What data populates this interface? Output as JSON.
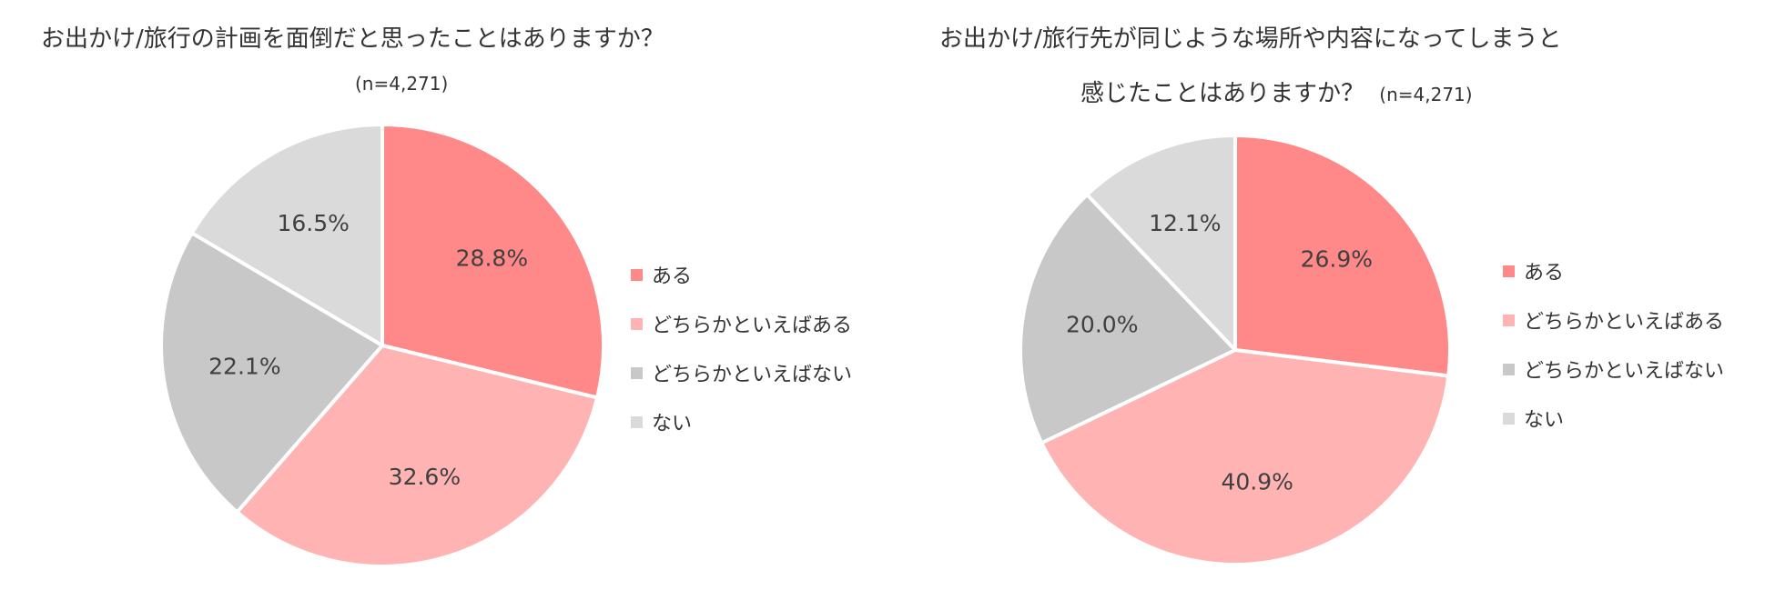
{
  "chart_data": [
    {
      "type": "pie",
      "title": "お出かけ/旅行の計画を面倒だと思ったことはありますか？",
      "n_label": "(n=4,271)",
      "categories": [
        "ある",
        "どちらかといえばある",
        "どちらかといえばない",
        "ない"
      ],
      "values": [
        28.8,
        32.6,
        22.1,
        16.5
      ],
      "labels": [
        "28.8%",
        "32.6%",
        "22.1%",
        "16.5%"
      ],
      "colors": [
        "#FF8888",
        "#FFB3B3",
        "#C8C8C8",
        "#DADADA"
      ],
      "legend_position": "right"
    },
    {
      "type": "pie",
      "title_line1": "お出かけ/旅行先が同じような場所や内容になってしまうと",
      "title_line2": "感じたことはありますか？",
      "n_label": "(n=4,271)",
      "categories": [
        "ある",
        "どちらかといえばある",
        "どちらかといえばない",
        "ない"
      ],
      "values": [
        26.9,
        40.9,
        20.0,
        12.1
      ],
      "labels": [
        "26.9%",
        "40.9%",
        "20.0%",
        "12.1%"
      ],
      "colors": [
        "#FF8888",
        "#FFB3B3",
        "#C8C8C8",
        "#DADADA"
      ],
      "legend_position": "right"
    }
  ]
}
